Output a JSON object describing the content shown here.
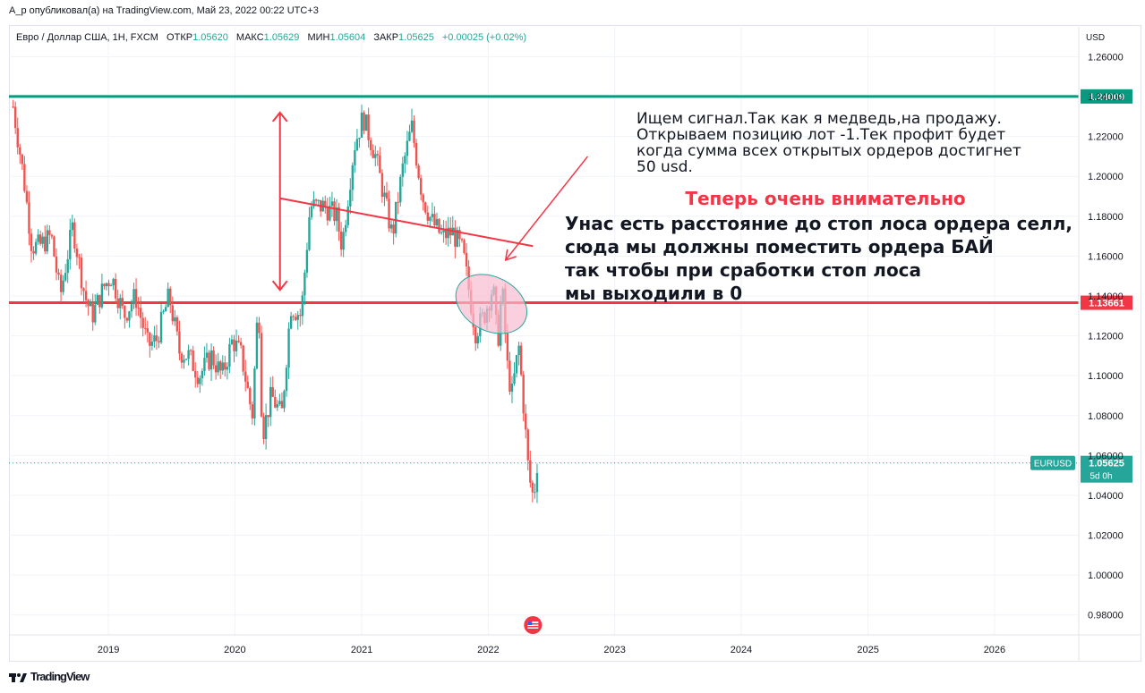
{
  "header": {
    "published": "A_p опубликовал(а) на TradingView.com, Май 23, 2022 00:22 UTC+3"
  },
  "symbol_line": {
    "name": "Евро / Доллар США, 1H, FXCM",
    "open_label": "ОТКР",
    "open": "1.05620",
    "high_label": "МАКС",
    "high": "1.05629",
    "low_label": "МИН",
    "low": "1.05604",
    "close_label": "ЗАКР",
    "close": "1.05625",
    "change": "+0.00025 (+0.02%)"
  },
  "footer": {
    "brand": "TradingView"
  },
  "colors": {
    "up": "#26a69a",
    "down": "#ef5350",
    "resistance": "#089981",
    "support": "#f23645",
    "annotation": "#f23645",
    "highlight_text": "#f23645",
    "ellipse_fill": "#f8bbd0",
    "ellipse_stroke": "#26a69a"
  },
  "chart_data": {
    "type": "candlestick",
    "symbol": "EURUSD",
    "currency_label": "USD",
    "y_ticks": [
      "1.26000",
      "1.24000",
      "1.22000",
      "1.20000",
      "1.18000",
      "1.16000",
      "1.14000",
      "1.12000",
      "1.10000",
      "1.08000",
      "1.06000",
      "1.04000",
      "1.02000",
      "1.00000",
      "0.98000"
    ],
    "x_ticks": [
      "2019",
      "2020",
      "2021",
      "2022",
      "2023",
      "2024",
      "2025",
      "2026"
    ],
    "ylim": [
      0.97,
      1.275
    ],
    "xlim": [
      "2018-03-20",
      "2026-09-01"
    ],
    "price_series": [
      [
        "2018-04-01",
        1.235
      ],
      [
        "2018-05-01",
        1.2
      ],
      [
        "2018-05-25",
        1.165
      ],
      [
        "2018-06-15",
        1.165
      ],
      [
        "2018-07-20",
        1.17
      ],
      [
        "2018-08-15",
        1.14
      ],
      [
        "2018-09-20",
        1.175
      ],
      [
        "2018-10-25",
        1.14
      ],
      [
        "2018-11-15",
        1.13
      ],
      [
        "2018-12-20",
        1.145
      ],
      [
        "2019-01-10",
        1.15
      ],
      [
        "2019-02-15",
        1.13
      ],
      [
        "2019-03-20",
        1.14
      ],
      [
        "2019-04-25",
        1.115
      ],
      [
        "2019-05-20",
        1.118
      ],
      [
        "2019-06-25",
        1.14
      ],
      [
        "2019-07-25",
        1.112
      ],
      [
        "2019-08-20",
        1.11
      ],
      [
        "2019-09-20",
        1.1
      ],
      [
        "2019-10-25",
        1.11
      ],
      [
        "2019-11-25",
        1.1
      ],
      [
        "2019-12-25",
        1.118
      ],
      [
        "2020-01-20",
        1.11
      ],
      [
        "2020-02-20",
        1.08
      ],
      [
        "2020-03-09",
        1.14
      ],
      [
        "2020-03-20",
        1.07
      ],
      [
        "2020-04-15",
        1.09
      ],
      [
        "2020-05-15",
        1.08
      ],
      [
        "2020-06-10",
        1.135
      ],
      [
        "2020-07-10",
        1.13
      ],
      [
        "2020-08-05",
        1.185
      ],
      [
        "2020-09-15",
        1.185
      ],
      [
        "2020-10-20",
        1.18
      ],
      [
        "2020-11-05",
        1.165
      ],
      [
        "2020-12-10",
        1.215
      ],
      [
        "2021-01-05",
        1.23
      ],
      [
        "2021-02-10",
        1.21
      ],
      [
        "2021-03-30",
        1.17
      ],
      [
        "2021-04-30",
        1.205
      ],
      [
        "2021-05-25",
        1.225
      ],
      [
        "2021-06-25",
        1.19
      ],
      [
        "2021-07-20",
        1.178
      ],
      [
        "2021-08-20",
        1.17
      ],
      [
        "2021-09-20",
        1.172
      ],
      [
        "2021-10-20",
        1.162
      ],
      [
        "2021-11-25",
        1.122
      ],
      [
        "2021-12-20",
        1.13
      ],
      [
        "2022-01-15",
        1.145
      ],
      [
        "2022-01-28",
        1.115
      ],
      [
        "2022-02-10",
        1.145
      ],
      [
        "2022-02-25",
        1.105
      ],
      [
        "2022-03-10",
        1.09
      ],
      [
        "2022-03-30",
        1.115
      ],
      [
        "2022-04-15",
        1.08
      ],
      [
        "2022-04-28",
        1.05
      ],
      [
        "2022-05-12",
        1.038
      ],
      [
        "2022-05-22",
        1.056
      ]
    ],
    "horizontal_levels": [
      {
        "price": 1.24009,
        "label": "1.24009",
        "role": "resistance"
      },
      {
        "price": 1.13661,
        "label": "1.13661",
        "role": "support"
      }
    ],
    "last_price": {
      "value": "1.05625",
      "countdown": "5d 0h",
      "symbol_label": "EURUSD"
    },
    "annotations": {
      "text1": [
        "Ищем сигнал.Так как я медведь,на продажу.",
        "Открываем позицию лот -1.Тек профит будет",
        "когда сумма всех открытых ордеров достигнет",
        "50 usd."
      ],
      "headline": "Теперь очень внимательно",
      "text2": [
        "Унас есть расстояние до стоп лоса ордера селл,",
        "сюда мы должны поместить ордера БАЙ",
        "так чтобы при сработки стоп лоса",
        "мы выходили в 0"
      ]
    }
  }
}
